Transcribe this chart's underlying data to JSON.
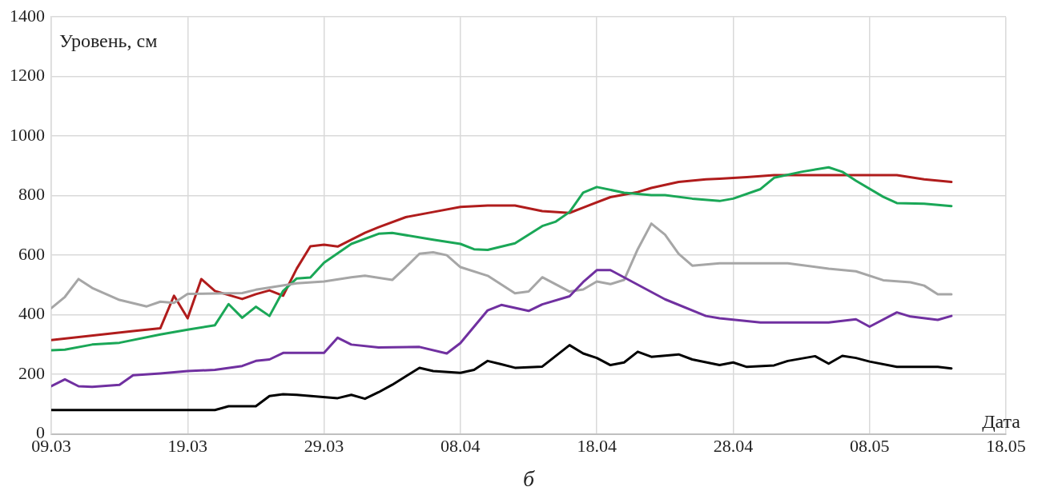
{
  "chart_data": {
    "type": "line",
    "ylabel": "Уровень, см",
    "xlabel": "Дата",
    "annotations": [
      "б"
    ],
    "xlim": [
      "--03-09",
      "--05-18"
    ],
    "xticks": [
      {
        "value": "--03-09",
        "label": "09.03"
      },
      {
        "value": "--03-19",
        "label": "19.03"
      },
      {
        "value": "--03-29",
        "label": "29.03"
      },
      {
        "value": "--04-08",
        "label": "08.04"
      },
      {
        "value": "--04-18",
        "label": "18.04"
      },
      {
        "value": "--04-28",
        "label": "28.04"
      },
      {
        "value": "--05-08",
        "label": "08.05"
      },
      {
        "value": "--05-18",
        "label": "18.05"
      }
    ],
    "ylim": [
      0,
      1400
    ],
    "yticks": [
      0,
      200,
      400,
      600,
      800,
      1000,
      1200,
      1400
    ],
    "grid": true,
    "legend": false,
    "marker": "none",
    "line_style": "solid",
    "series": [
      {
        "color": "#000000",
        "x": [
          "--03-09",
          "--03-21",
          "--03-22",
          "--03-24",
          "--03-25",
          "--03-26",
          "--03-27",
          "--03-30",
          "--03-31",
          "--04-01",
          "--04-02",
          "--04-03",
          "--04-05",
          "--04-06",
          "--04-08",
          "--04-09",
          "--04-10",
          "--04-11",
          "--04-12",
          "--04-14",
          "--04-16",
          "--04-17",
          "--04-18",
          "--04-19",
          "--04-20",
          "--04-21",
          "--04-22",
          "--04-24",
          "--04-25",
          "--04-27",
          "--04-28",
          "--04-29",
          "--05-01",
          "--05-02",
          "--05-04",
          "--05-05",
          "--05-06",
          "--05-07",
          "--05-08",
          "--05-10",
          "--05-13",
          "--05-14"
        ],
        "values": [
          80,
          80,
          93,
          93,
          127,
          133,
          131,
          120,
          131,
          118,
          140,
          165,
          222,
          211,
          205,
          215,
          245,
          234,
          222,
          226,
          298,
          270,
          255,
          231,
          240,
          276,
          259,
          267,
          250,
          231,
          240,
          225,
          230,
          245,
          261,
          236,
          262,
          255,
          243,
          225,
          225,
          220
        ]
      },
      {
        "color": "#7030a0",
        "x": [
          "--03-09",
          "--03-10",
          "--03-11",
          "--03-12",
          "--03-14",
          "--03-15",
          "--03-17",
          "--03-19",
          "--03-21",
          "--03-23",
          "--03-24",
          "--03-25",
          "--03-26",
          "--03-29",
          "--03-30",
          "--03-31",
          "--04-02",
          "--04-05",
          "--04-07",
          "--04-08",
          "--04-10",
          "--04-11",
          "--04-13",
          "--04-14",
          "--04-16",
          "--04-17",
          "--04-18",
          "--04-19",
          "--04-23",
          "--04-26",
          "--04-27",
          "--04-30",
          "--05-05",
          "--05-07",
          "--05-08",
          "--05-10",
          "--05-11",
          "--05-13",
          "--05-14"
        ],
        "values": [
          160,
          183,
          160,
          158,
          165,
          197,
          203,
          211,
          215,
          228,
          245,
          250,
          272,
          272,
          323,
          300,
          290,
          292,
          270,
          305,
          415,
          433,
          413,
          435,
          462,
          510,
          550,
          550,
          452,
          396,
          388,
          374,
          374,
          385,
          360,
          408,
          394,
          383,
          396
        ]
      },
      {
        "color": "#a6a6a6",
        "x": [
          "--03-09",
          "--03-10",
          "--03-11",
          "--03-12",
          "--03-14",
          "--03-16",
          "--03-17",
          "--03-18",
          "--03-19",
          "--03-23",
          "--03-24",
          "--03-27",
          "--03-29",
          "--03-31",
          "--04-01",
          "--04-03",
          "--04-04",
          "--04-05",
          "--04-06",
          "--04-07",
          "--04-08",
          "--04-10",
          "--04-12",
          "--04-13",
          "--04-14",
          "--04-16",
          "--04-17",
          "--04-18",
          "--04-19",
          "--04-20",
          "--04-21",
          "--04-22",
          "--04-23",
          "--04-24",
          "--04-25",
          "--04-27",
          "--05-02",
          "--05-05",
          "--05-07",
          "--05-09",
          "--05-11",
          "--05-12",
          "--05-13",
          "--05-14"
        ],
        "values": [
          422,
          460,
          520,
          490,
          450,
          428,
          444,
          440,
          470,
          473,
          484,
          506,
          512,
          526,
          531,
          517,
          560,
          605,
          610,
          600,
          560,
          531,
          472,
          478,
          526,
          478,
          485,
          512,
          503,
          517,
          620,
          706,
          669,
          605,
          565,
          573,
          573,
          555,
          546,
          516,
          509,
          498,
          469,
          469
        ]
      },
      {
        "color": "#1aa757",
        "x": [
          "--03-09",
          "--03-10",
          "--03-12",
          "--03-14",
          "--03-17",
          "--03-19",
          "--03-21",
          "--03-22",
          "--03-23",
          "--03-24",
          "--03-25",
          "--03-26",
          "--03-27",
          "--03-28",
          "--03-29",
          "--03-31",
          "--04-02",
          "--04-03",
          "--04-06",
          "--04-08",
          "--04-09",
          "--04-10",
          "--04-12",
          "--04-14",
          "--04-15",
          "--04-16",
          "--04-17",
          "--04-18",
          "--04-20",
          "--04-22",
          "--04-23",
          "--04-25",
          "--04-27",
          "--04-28",
          "--04-30",
          "--05-01",
          "--05-03",
          "--05-05",
          "--05-06",
          "--05-07",
          "--05-09",
          "--05-10",
          "--05-12",
          "--05-14"
        ],
        "values": [
          281,
          283,
          300,
          306,
          334,
          350,
          365,
          436,
          390,
          427,
          396,
          480,
          522,
          525,
          575,
          638,
          672,
          675,
          652,
          638,
          620,
          618,
          640,
          698,
          713,
          745,
          810,
          829,
          810,
          802,
          802,
          790,
          782,
          790,
          822,
          860,
          880,
          895,
          880,
          850,
          796,
          775,
          773,
          765
        ]
      },
      {
        "color": "#b01c1c",
        "x": [
          "--03-09",
          "--03-15",
          "--03-17",
          "--03-18",
          "--03-19",
          "--03-20",
          "--03-21",
          "--03-23",
          "--03-24",
          "--03-25",
          "--03-26",
          "--03-27",
          "--03-28",
          "--03-29",
          "--03-30",
          "--04-01",
          "--04-02",
          "--04-04",
          "--04-06",
          "--04-08",
          "--04-10",
          "--04-12",
          "--04-14",
          "--04-16",
          "--04-17",
          "--04-19",
          "--04-21",
          "--04-22",
          "--04-24",
          "--04-26",
          "--04-27",
          "--04-29",
          "--05-01",
          "--05-10",
          "--05-12",
          "--05-14"
        ],
        "values": [
          315,
          345,
          355,
          464,
          388,
          520,
          480,
          453,
          469,
          482,
          464,
          555,
          630,
          635,
          629,
          675,
          694,
          728,
          745,
          762,
          767,
          767,
          748,
          742,
          760,
          795,
          812,
          826,
          846,
          855,
          857,
          862,
          869,
          869,
          855,
          846
        ]
      }
    ]
  }
}
